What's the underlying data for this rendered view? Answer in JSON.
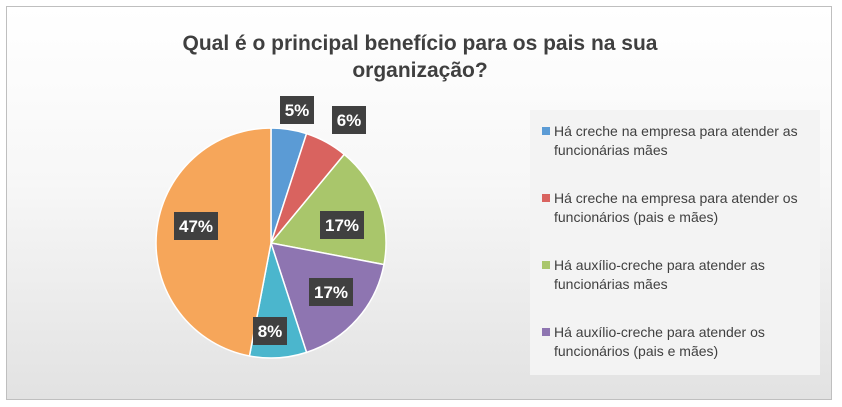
{
  "chart_data": {
    "type": "pie",
    "title": "Qual é o principal benefício para os pais na sua organização?",
    "legend_position": "right",
    "categories": [
      "Há creche na empresa para atender as funcionárias mães",
      "Há creche na empresa para atender os funcionários (pais e mães)",
      "Há auxílio-creche para atender as funcionárias mães",
      "Há auxílio-creche para atender os funcionários (pais e mães)",
      "",
      ""
    ],
    "values": [
      5,
      6,
      17,
      17,
      8,
      47
    ],
    "labels": [
      "5%",
      "6%",
      "17%",
      "17%",
      "8%",
      "47%"
    ],
    "colors": [
      "#5b9bd5",
      "#d9635f",
      "#a9c66b",
      "#8e75b1",
      "#4bb6cd",
      "#f6a65a"
    ]
  },
  "legend": [
    {
      "label": "Há creche na empresa para atender as funcionárias mães",
      "color": "#5b9bd5"
    },
    {
      "label": "Há creche na empresa para atender os funcionários (pais e mães)",
      "color": "#d9635f"
    },
    {
      "label": "Há auxílio-creche para atender as funcionárias mães",
      "color": "#a9c66b"
    },
    {
      "label": "Há auxílio-creche para atender os funcionários (pais e mães)",
      "color": "#8e75b1"
    }
  ]
}
